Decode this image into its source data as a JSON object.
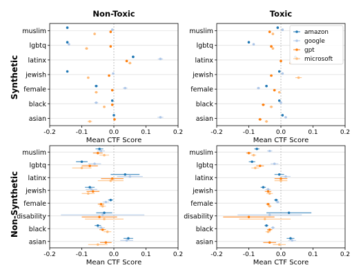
{
  "colors": {
    "amazon": "#1f77b4",
    "google": "#aec7e8",
    "gpt": "#ff7f0e",
    "microsoft": "#ffbb78",
    "grid": "#dcdcdc",
    "zero_line": "#b0b0b0",
    "axis": "#000000"
  },
  "rows": {
    "synthetic": "Synthetic",
    "non_synthetic": "Non-Synthetic"
  },
  "legend": {
    "placement": "top-right of Synthetic/Toxic panel",
    "entries": [
      "amazon",
      "google",
      "gpt",
      "microsoft"
    ]
  },
  "chart_data": [
    {
      "type": "scatter",
      "panel": "synthetic-nontoxic",
      "title": "Non-Toxic",
      "xlabel": "Mean CTF Score",
      "xlim": [
        -0.2,
        0.2
      ],
      "xticks": [
        "-0.2",
        "-0.1",
        "0.0",
        "0.1",
        "0.2"
      ],
      "categories": [
        "muslim",
        "lgbtq",
        "latinx",
        "jewish",
        "female",
        "black",
        "asian"
      ],
      "series": [
        {
          "name": "amazon",
          "values": [
            -0.145,
            -0.145,
            0.06,
            -0.145,
            -0.055,
            -0.005,
            0.0
          ],
          "err": [
            0.002,
            0.002,
            0.004,
            0.002,
            0.005,
            0.002,
            0.002
          ]
        },
        {
          "name": "google",
          "values": [
            -0.005,
            -0.14,
            0.145,
            -0.002,
            0.035,
            -0.055,
            0.145
          ],
          "err": [
            0.002,
            0.003,
            0.008,
            0.002,
            0.007,
            0.006,
            0.009
          ]
        },
        {
          "name": "gpt",
          "values": [
            -0.01,
            -0.01,
            0.04,
            -0.015,
            -0.005,
            -0.005,
            0.002
          ],
          "err": [
            0.002,
            0.003,
            0.004,
            0.003,
            0.003,
            0.002,
            0.002
          ]
        },
        {
          "name": "microsoft",
          "values": [
            -0.06,
            -0.085,
            0.05,
            -0.08,
            -0.055,
            -0.03,
            -0.075
          ],
          "err": [
            0.003,
            0.005,
            0.005,
            0.004,
            0.005,
            0.004,
            0.007
          ]
        }
      ]
    },
    {
      "type": "scatter",
      "panel": "synthetic-toxic",
      "title": "Toxic",
      "xlabel": "Mean CTF Score",
      "xlim": [
        -0.2,
        0.2
      ],
      "xticks": [
        "-0.2",
        "-0.1",
        "0.0",
        "0.1",
        "0.2"
      ],
      "categories": [
        "muslim",
        "lgbtq",
        "latinx",
        "jewish",
        "female",
        "black",
        "asian"
      ],
      "series": [
        {
          "name": "amazon",
          "values": [
            -0.01,
            -0.1,
            0.045,
            -0.005,
            -0.045,
            -0.005,
            0.005
          ],
          "err": [
            0.002,
            0.003,
            0.004,
            0.003,
            0.004,
            0.002,
            0.002
          ]
        },
        {
          "name": "google",
          "values": [
            0.005,
            -0.085,
            0.055,
            0.005,
            -0.07,
            0.0,
            0.015
          ],
          "err": [
            0.002,
            0.003,
            0.005,
            0.003,
            0.005,
            0.003,
            0.004
          ]
        },
        {
          "name": "gpt",
          "values": [
            -0.035,
            -0.03,
            0.0,
            -0.03,
            -0.02,
            -0.055,
            -0.065
          ],
          "err": [
            0.004,
            0.004,
            0.003,
            0.004,
            0.004,
            0.005,
            0.005
          ]
        },
        {
          "name": "microsoft",
          "values": [
            -0.025,
            -0.025,
            0.03,
            0.055,
            -0.005,
            -0.03,
            -0.045
          ],
          "err": [
            0.004,
            0.004,
            0.004,
            0.01,
            0.004,
            0.005,
            0.005
          ]
        }
      ]
    },
    {
      "type": "scatter",
      "panel": "nonsynthetic-nontoxic",
      "title": "",
      "xlabel": "Mean CTF Score",
      "xlim": [
        -0.2,
        0.2
      ],
      "xticks": [
        "-0.2",
        "-0.1",
        "0.0",
        "0.1",
        "0.2"
      ],
      "categories": [
        "muslim",
        "lgbtq",
        "latinx",
        "jewish",
        "female",
        "disability",
        "black",
        "asian"
      ],
      "series": [
        {
          "name": "amazon",
          "values": [
            -0.045,
            -0.1,
            0.035,
            -0.075,
            -0.01,
            -0.03,
            -0.05,
            0.045
          ],
          "err": [
            0.012,
            0.018,
            0.045,
            0.015,
            0.008,
            0.025,
            0.01,
            0.015
          ]
        },
        {
          "name": "google",
          "values": [
            -0.04,
            -0.06,
            0.05,
            -0.07,
            -0.025,
            -0.035,
            -0.04,
            0.04
          ],
          "err": [
            0.012,
            0.02,
            0.04,
            0.018,
            0.01,
            0.13,
            0.012,
            0.02
          ]
        },
        {
          "name": "gpt",
          "values": [
            -0.05,
            -0.075,
            -0.005,
            -0.065,
            -0.04,
            -0.045,
            -0.035,
            -0.025
          ],
          "err": [
            0.015,
            0.025,
            0.035,
            0.02,
            0.01,
            0.055,
            0.01,
            0.018
          ]
        },
        {
          "name": "microsoft",
          "values": [
            -0.03,
            -0.1,
            -0.01,
            -0.08,
            -0.035,
            -0.03,
            -0.02,
            -0.05
          ],
          "err": [
            0.015,
            0.03,
            0.04,
            0.02,
            0.01,
            0.06,
            0.012,
            0.03
          ]
        }
      ]
    },
    {
      "type": "scatter",
      "panel": "nonsynthetic-toxic",
      "title": "",
      "xlabel": "Mean CTF Score",
      "xlim": [
        -0.2,
        0.2
      ],
      "xticks": [
        "-0.2",
        "-0.1",
        "0.0",
        "0.1",
        "0.2"
      ],
      "categories": [
        "muslim",
        "lgbtq",
        "latinx",
        "jewish",
        "female",
        "disability",
        "black",
        "asian"
      ],
      "series": [
        {
          "name": "amazon",
          "values": [
            -0.075,
            -0.09,
            -0.005,
            -0.055,
            -0.015,
            0.025,
            -0.045,
            0.03
          ],
          "err": [
            0.008,
            0.01,
            0.015,
            0.008,
            0.006,
            0.07,
            0.006,
            0.012
          ]
        },
        {
          "name": "google",
          "values": [
            -0.035,
            -0.02,
            0.015,
            -0.04,
            -0.01,
            -0.035,
            -0.025,
            0.035
          ],
          "err": [
            0.008,
            0.012,
            0.015,
            0.008,
            0.006,
            0.1,
            0.006,
            0.012
          ]
        },
        {
          "name": "gpt",
          "values": [
            -0.1,
            -0.065,
            0.0,
            -0.04,
            -0.04,
            -0.1,
            -0.035,
            -0.035
          ],
          "err": [
            0.008,
            0.012,
            0.02,
            0.01,
            0.006,
            0.08,
            0.008,
            0.02
          ]
        },
        {
          "name": "microsoft",
          "values": [
            -0.085,
            -0.08,
            0.0,
            -0.035,
            -0.035,
            -0.05,
            -0.04,
            -0.005
          ],
          "err": [
            0.008,
            0.012,
            0.02,
            0.01,
            0.006,
            0.08,
            0.008,
            0.02
          ]
        }
      ]
    }
  ]
}
